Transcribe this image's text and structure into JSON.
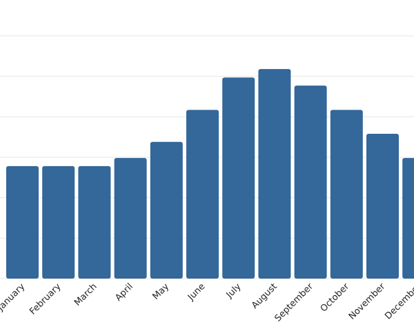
{
  "chart_data": {
    "type": "bar",
    "categories": [
      "January",
      "February",
      "March",
      "April",
      "May",
      "June",
      "July",
      "August",
      "September",
      "October",
      "November",
      "December"
    ],
    "values": [
      2.78,
      2.78,
      2.78,
      2.98,
      3.38,
      4.17,
      4.97,
      5.18,
      4.77,
      4.17,
      3.58,
      2.98
    ],
    "color": "#34679a",
    "ylim": [
      0,
      6
    ],
    "yticks": [
      0,
      1,
      2,
      3,
      4,
      5,
      6
    ],
    "grid": true
  }
}
